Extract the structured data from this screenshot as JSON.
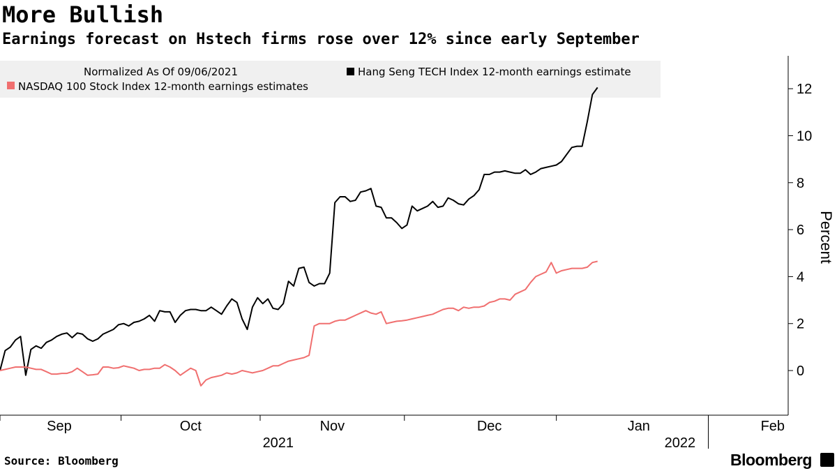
{
  "title": "More Bullish",
  "subtitle": "Earnings forecast on Hstech firms rose over 12% since early September",
  "source": "Source: Bloomberg",
  "brand": "Bloomberg",
  "chart_data": {
    "type": "line",
    "ylabel": "Percent",
    "ylim": [
      -1.9,
      13.4
    ],
    "yticks": [
      0,
      2,
      4,
      6,
      8,
      10,
      12
    ],
    "xlim": [
      0,
      153
    ],
    "month_labels": [
      {
        "label": "Sep",
        "x": 11.5
      },
      {
        "label": "Oct",
        "x": 37
      },
      {
        "label": "Nov",
        "x": 64.5
      },
      {
        "label": "Dec",
        "x": 95
      },
      {
        "label": "Jan",
        "x": 124
      },
      {
        "label": "Feb",
        "x": 150
      }
    ],
    "month_boundaries": [
      0,
      23.5,
      50.5,
      78.5,
      108,
      137.5
    ],
    "year_labels": [
      {
        "label": "2021",
        "x": 54
      },
      {
        "label": "2022",
        "x": 132
      }
    ],
    "year_boundary": 137.5,
    "legend_header": "Normalized As Of 09/06/2021",
    "colors": {
      "hstech": "#000000",
      "nasdaq": "#f06f6f",
      "legend_bg": "#f0f0f0",
      "axis": "#000000"
    },
    "series": [
      {
        "name": "Hang Seng TECH Index 12-month earnings estimate",
        "color": "#000000",
        "points": [
          [
            0,
            0
          ],
          [
            1,
            0.85
          ],
          [
            2,
            1.0
          ],
          [
            3,
            1.3
          ],
          [
            4,
            1.45
          ],
          [
            5,
            -0.2
          ],
          [
            6,
            0.9
          ],
          [
            7,
            1.05
          ],
          [
            8,
            0.95
          ],
          [
            9,
            1.2
          ],
          [
            10,
            1.3
          ],
          [
            11,
            1.45
          ],
          [
            12,
            1.55
          ],
          [
            13,
            1.6
          ],
          [
            14,
            1.4
          ],
          [
            15,
            1.6
          ],
          [
            16,
            1.55
          ],
          [
            17,
            1.35
          ],
          [
            18,
            1.25
          ],
          [
            19,
            1.35
          ],
          [
            20,
            1.55
          ],
          [
            21,
            1.65
          ],
          [
            22,
            1.75
          ],
          [
            23,
            1.95
          ],
          [
            24,
            2.0
          ],
          [
            25,
            1.9
          ],
          [
            26,
            2.05
          ],
          [
            27,
            2.1
          ],
          [
            28,
            2.2
          ],
          [
            29,
            2.35
          ],
          [
            30,
            2.1
          ],
          [
            31,
            2.55
          ],
          [
            32,
            2.5
          ],
          [
            33,
            2.5
          ],
          [
            34,
            2.05
          ],
          [
            35,
            2.35
          ],
          [
            36,
            2.55
          ],
          [
            37,
            2.6
          ],
          [
            38,
            2.6
          ],
          [
            39,
            2.55
          ],
          [
            40,
            2.55
          ],
          [
            41,
            2.7
          ],
          [
            42,
            2.55
          ],
          [
            43,
            2.4
          ],
          [
            44,
            2.75
          ],
          [
            45,
            3.05
          ],
          [
            46,
            2.9
          ],
          [
            47,
            2.2
          ],
          [
            48,
            1.75
          ],
          [
            49,
            2.7
          ],
          [
            50,
            3.1
          ],
          [
            51,
            2.85
          ],
          [
            52,
            3.05
          ],
          [
            53,
            2.65
          ],
          [
            54,
            2.6
          ],
          [
            55,
            2.85
          ],
          [
            56,
            3.8
          ],
          [
            57,
            3.6
          ],
          [
            58,
            4.35
          ],
          [
            59,
            4.4
          ],
          [
            60,
            3.75
          ],
          [
            61,
            3.6
          ],
          [
            62,
            3.7
          ],
          [
            63,
            3.7
          ],
          [
            64,
            4.15
          ],
          [
            65,
            7.15
          ],
          [
            66,
            7.4
          ],
          [
            67,
            7.4
          ],
          [
            68,
            7.2
          ],
          [
            69,
            7.25
          ],
          [
            70,
            7.6
          ],
          [
            71,
            7.65
          ],
          [
            72,
            7.75
          ],
          [
            73,
            7.0
          ],
          [
            74,
            6.95
          ],
          [
            75,
            6.5
          ],
          [
            76,
            6.5
          ],
          [
            77,
            6.3
          ],
          [
            78,
            6.05
          ],
          [
            79,
            6.2
          ],
          [
            80,
            7.0
          ],
          [
            81,
            6.8
          ],
          [
            82,
            6.9
          ],
          [
            83,
            7.0
          ],
          [
            84,
            7.2
          ],
          [
            85,
            6.95
          ],
          [
            86,
            7.0
          ],
          [
            87,
            7.35
          ],
          [
            88,
            7.25
          ],
          [
            89,
            7.1
          ],
          [
            90,
            7.05
          ],
          [
            91,
            7.3
          ],
          [
            92,
            7.45
          ],
          [
            93,
            7.7
          ],
          [
            94,
            8.35
          ],
          [
            95,
            8.35
          ],
          [
            96,
            8.45
          ],
          [
            97,
            8.45
          ],
          [
            98,
            8.5
          ],
          [
            99,
            8.45
          ],
          [
            100,
            8.4
          ],
          [
            101,
            8.4
          ],
          [
            102,
            8.55
          ],
          [
            103,
            8.35
          ],
          [
            104,
            8.45
          ],
          [
            105,
            8.6
          ],
          [
            106,
            8.65
          ],
          [
            107,
            8.7
          ],
          [
            108,
            8.75
          ],
          [
            109,
            8.9
          ],
          [
            110,
            9.2
          ],
          [
            111,
            9.5
          ],
          [
            112,
            9.55
          ],
          [
            113,
            9.55
          ],
          [
            114,
            10.6
          ],
          [
            115,
            11.75
          ],
          [
            116,
            12.05
          ]
        ]
      },
      {
        "name": "NASDAQ 100 Stock Index 12-month earnings estimates",
        "color": "#f06f6f",
        "points": [
          [
            0,
            0
          ],
          [
            1,
            0.05
          ],
          [
            2,
            0.1
          ],
          [
            3,
            0.15
          ],
          [
            4,
            0.15
          ],
          [
            5,
            0.15
          ],
          [
            6,
            0.1
          ],
          [
            7,
            0.05
          ],
          [
            8,
            0.05
          ],
          [
            9,
            -0.05
          ],
          [
            10,
            -0.15
          ],
          [
            11,
            -0.15
          ],
          [
            12,
            -0.12
          ],
          [
            13,
            -0.12
          ],
          [
            14,
            -0.05
          ],
          [
            15,
            0.1
          ],
          [
            16,
            -0.05
          ],
          [
            17,
            -0.2
          ],
          [
            18,
            -0.18
          ],
          [
            19,
            -0.15
          ],
          [
            20,
            0.15
          ],
          [
            21,
            0.15
          ],
          [
            22,
            0.1
          ],
          [
            23,
            0.12
          ],
          [
            24,
            0.2
          ],
          [
            25,
            0.15
          ],
          [
            26,
            0.1
          ],
          [
            27,
            0.0
          ],
          [
            28,
            0.05
          ],
          [
            29,
            0.05
          ],
          [
            30,
            0.1
          ],
          [
            31,
            0.1
          ],
          [
            32,
            0.25
          ],
          [
            33,
            0.15
          ],
          [
            34,
            0.0
          ],
          [
            35,
            -0.2
          ],
          [
            36,
            -0.05
          ],
          [
            37,
            0.1
          ],
          [
            38,
            0.0
          ],
          [
            39,
            -0.65
          ],
          [
            40,
            -0.4
          ],
          [
            41,
            -0.3
          ],
          [
            42,
            -0.25
          ],
          [
            43,
            -0.2
          ],
          [
            44,
            -0.1
          ],
          [
            45,
            -0.15
          ],
          [
            46,
            -0.1
          ],
          [
            47,
            0.0
          ],
          [
            48,
            -0.05
          ],
          [
            49,
            -0.1
          ],
          [
            50,
            -0.05
          ],
          [
            51,
            0.0
          ],
          [
            52,
            0.1
          ],
          [
            53,
            0.2
          ],
          [
            54,
            0.2
          ],
          [
            55,
            0.3
          ],
          [
            56,
            0.4
          ],
          [
            57,
            0.45
          ],
          [
            58,
            0.5
          ],
          [
            59,
            0.55
          ],
          [
            60,
            0.65
          ],
          [
            61,
            1.9
          ],
          [
            62,
            2.0
          ],
          [
            63,
            2.0
          ],
          [
            64,
            2.0
          ],
          [
            65,
            2.1
          ],
          [
            66,
            2.15
          ],
          [
            67,
            2.15
          ],
          [
            68,
            2.25
          ],
          [
            69,
            2.35
          ],
          [
            70,
            2.45
          ],
          [
            71,
            2.55
          ],
          [
            72,
            2.45
          ],
          [
            73,
            2.4
          ],
          [
            74,
            2.5
          ],
          [
            75,
            2.0
          ],
          [
            76,
            2.05
          ],
          [
            77,
            2.1
          ],
          [
            78,
            2.12
          ],
          [
            79,
            2.15
          ],
          [
            80,
            2.2
          ],
          [
            81,
            2.25
          ],
          [
            82,
            2.3
          ],
          [
            83,
            2.35
          ],
          [
            84,
            2.4
          ],
          [
            85,
            2.5
          ],
          [
            86,
            2.6
          ],
          [
            87,
            2.65
          ],
          [
            88,
            2.65
          ],
          [
            89,
            2.55
          ],
          [
            90,
            2.7
          ],
          [
            91,
            2.65
          ],
          [
            92,
            2.7
          ],
          [
            93,
            2.7
          ],
          [
            94,
            2.75
          ],
          [
            95,
            2.9
          ],
          [
            96,
            2.95
          ],
          [
            97,
            3.05
          ],
          [
            98,
            3.05
          ],
          [
            99,
            3.0
          ],
          [
            100,
            3.25
          ],
          [
            101,
            3.35
          ],
          [
            102,
            3.45
          ],
          [
            103,
            3.75
          ],
          [
            104,
            4.0
          ],
          [
            105,
            4.1
          ],
          [
            106,
            4.2
          ],
          [
            107,
            4.6
          ],
          [
            108,
            4.15
          ],
          [
            109,
            4.25
          ],
          [
            110,
            4.3
          ],
          [
            111,
            4.35
          ],
          [
            112,
            4.35
          ],
          [
            113,
            4.35
          ],
          [
            114,
            4.4
          ],
          [
            115,
            4.6
          ],
          [
            116,
            4.65
          ]
        ]
      }
    ]
  }
}
